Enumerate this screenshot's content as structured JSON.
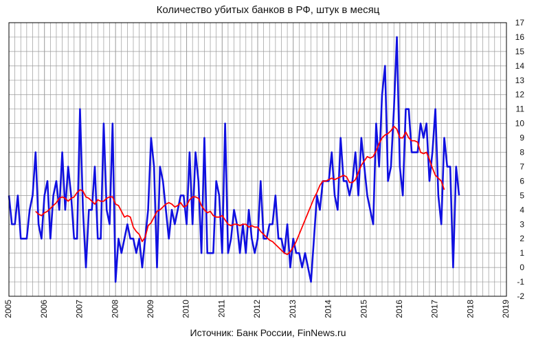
{
  "chart_data": {
    "type": "line",
    "title": "Количество  убитых  банков  в РФ, штук в месяц",
    "source": "Источник: Банк России, FinNews.ru",
    "xlabel": "",
    "ylabel": "",
    "x_ticks": [
      "2005",
      "2006",
      "2007",
      "2008",
      "2009",
      "2010",
      "2011",
      "2012",
      "2013",
      "2014",
      "2015",
      "2016",
      "2017",
      "2018",
      "2019"
    ],
    "y_ticks": [
      -2,
      -1,
      0,
      1,
      2,
      3,
      4,
      5,
      6,
      7,
      8,
      9,
      10,
      11,
      12,
      13,
      14,
      15,
      16,
      17
    ],
    "xlim": [
      2005,
      2019
    ],
    "ylim": [
      -2,
      17
    ],
    "grid": true,
    "y_axis_side": "right",
    "colors": {
      "monthly": "#1010e0",
      "average": "#ff0000",
      "grid": "#999999"
    },
    "series": [
      {
        "style": "monthly",
        "start": 2005.0,
        "step_months": 1,
        "values": [
          5,
          3,
          3,
          5,
          2,
          2,
          2,
          4,
          5,
          8,
          3,
          2,
          5,
          6,
          2,
          5,
          6,
          4,
          8,
          4,
          7,
          5,
          2,
          2,
          11,
          4,
          0,
          4,
          4,
          7,
          2,
          2,
          10,
          4,
          3,
          10,
          -1,
          2,
          1,
          2,
          3,
          2,
          2,
          1,
          2,
          0,
          2,
          4,
          9,
          7,
          0,
          7,
          6,
          4,
          2,
          4,
          3,
          4,
          5,
          5,
          3,
          8,
          3,
          8,
          6,
          1,
          9,
          1,
          1,
          1,
          6,
          5,
          1,
          10,
          1,
          2,
          4,
          3,
          1,
          3,
          1,
          4,
          2,
          1,
          2,
          6,
          2,
          2,
          3,
          3,
          5,
          2,
          2,
          1,
          3,
          0,
          2,
          1,
          1,
          0,
          1,
          0,
          -1,
          2,
          5,
          4,
          6,
          6,
          6,
          8,
          5,
          4,
          9,
          6,
          6,
          5,
          6,
          8,
          5,
          9,
          7,
          5,
          4,
          3,
          10,
          7,
          12,
          14,
          6,
          7,
          11,
          16,
          7,
          5,
          11,
          11,
          8,
          8,
          8,
          10,
          9,
          10,
          6,
          8,
          11,
          5,
          3,
          9,
          7,
          7,
          0,
          7,
          5
        ]
      },
      {
        "style": "average",
        "start": 2005.75,
        "step_months": 1,
        "values": [
          3.9,
          3.7,
          3.6,
          3.8,
          3.9,
          4.1,
          4.3,
          4.5,
          4.8,
          4.9,
          4.8,
          4.6,
          4.8,
          4.9,
          5.2,
          5.4,
          5.3,
          4.9,
          4.8,
          4.6,
          4.4,
          4.7,
          4.6,
          4.6,
          4.8,
          4.9,
          4.9,
          4.4,
          4.3,
          3.9,
          3.5,
          3.6,
          3.5,
          2.8,
          2.5,
          2.3,
          1.8,
          2.1,
          2.9,
          3.1,
          3.5,
          3.9,
          4.0,
          4.2,
          4.4,
          4.5,
          4.4,
          4.2,
          4.3,
          4.5,
          4.2,
          4.3,
          4.7,
          4.9,
          4.9,
          4.8,
          4.3,
          4.0,
          3.8,
          3.9,
          3.6,
          3.5,
          3.5,
          3.6,
          3.3,
          3.0,
          2.9,
          3.0,
          3.0,
          2.9,
          3.0,
          3.0,
          2.8,
          2.9,
          2.8,
          2.8,
          2.5,
          2.3,
          2.1,
          1.9,
          1.8,
          1.6,
          1.4,
          1.2,
          1.0,
          0.9,
          1.1,
          1.4,
          1.8,
          2.3,
          2.8,
          3.3,
          3.8,
          4.3,
          4.8,
          5.2,
          5.7,
          6.0,
          6.0,
          6.1,
          6.2,
          6.1,
          6.2,
          6.3,
          6.4,
          6.3,
          5.9,
          5.9,
          6.1,
          6.6,
          7.1,
          7.4,
          7.7,
          7.6,
          7.7,
          8.1,
          8.6,
          9.0,
          9.2,
          9.3,
          9.5,
          9.8,
          9.6,
          9.0,
          9.0,
          9.4,
          9.0,
          8.8,
          8.8,
          8.7,
          8.0,
          7.9,
          8.0,
          7.5,
          6.9,
          6.4,
          6.2,
          6.0,
          5.4
        ]
      }
    ]
  }
}
